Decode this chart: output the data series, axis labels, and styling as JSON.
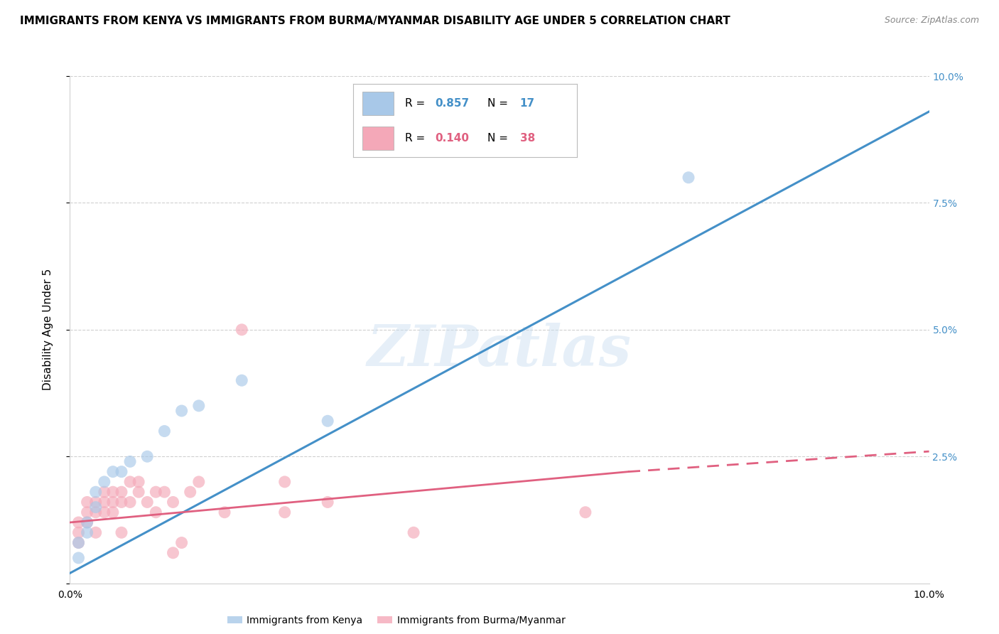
{
  "title": "IMMIGRANTS FROM KENYA VS IMMIGRANTS FROM BURMA/MYANMAR DISABILITY AGE UNDER 5 CORRELATION CHART",
  "source": "Source: ZipAtlas.com",
  "ylabel": "Disability Age Under 5",
  "xlim": [
    0.0,
    0.1
  ],
  "ylim": [
    0.0,
    0.1
  ],
  "watermark": "ZIPatlas",
  "kenya_R": 0.857,
  "kenya_N": 17,
  "burma_R": 0.14,
  "burma_N": 38,
  "kenya_color": "#a8c8e8",
  "kenya_line_color": "#4490c8",
  "burma_color": "#f4a8b8",
  "burma_line_color": "#e06080",
  "kenya_scatter": [
    [
      0.001,
      0.005
    ],
    [
      0.001,
      0.008
    ],
    [
      0.002,
      0.01
    ],
    [
      0.002,
      0.012
    ],
    [
      0.003,
      0.015
    ],
    [
      0.003,
      0.018
    ],
    [
      0.004,
      0.02
    ],
    [
      0.005,
      0.022
    ],
    [
      0.006,
      0.022
    ],
    [
      0.007,
      0.024
    ],
    [
      0.009,
      0.025
    ],
    [
      0.011,
      0.03
    ],
    [
      0.013,
      0.034
    ],
    [
      0.015,
      0.035
    ],
    [
      0.02,
      0.04
    ],
    [
      0.03,
      0.032
    ],
    [
      0.072,
      0.08
    ]
  ],
  "burma_scatter": [
    [
      0.001,
      0.008
    ],
    [
      0.001,
      0.01
    ],
    [
      0.001,
      0.012
    ],
    [
      0.002,
      0.012
    ],
    [
      0.002,
      0.014
    ],
    [
      0.002,
      0.016
    ],
    [
      0.003,
      0.01
    ],
    [
      0.003,
      0.014
    ],
    [
      0.003,
      0.016
    ],
    [
      0.004,
      0.014
    ],
    [
      0.004,
      0.016
    ],
    [
      0.004,
      0.018
    ],
    [
      0.005,
      0.014
    ],
    [
      0.005,
      0.016
    ],
    [
      0.005,
      0.018
    ],
    [
      0.006,
      0.01
    ],
    [
      0.006,
      0.016
    ],
    [
      0.006,
      0.018
    ],
    [
      0.007,
      0.016
    ],
    [
      0.007,
      0.02
    ],
    [
      0.008,
      0.018
    ],
    [
      0.008,
      0.02
    ],
    [
      0.009,
      0.016
    ],
    [
      0.01,
      0.014
    ],
    [
      0.01,
      0.018
    ],
    [
      0.011,
      0.018
    ],
    [
      0.012,
      0.016
    ],
    [
      0.012,
      0.006
    ],
    [
      0.013,
      0.008
    ],
    [
      0.014,
      0.018
    ],
    [
      0.015,
      0.02
    ],
    [
      0.018,
      0.014
    ],
    [
      0.02,
      0.05
    ],
    [
      0.025,
      0.014
    ],
    [
      0.025,
      0.02
    ],
    [
      0.03,
      0.016
    ],
    [
      0.04,
      0.01
    ],
    [
      0.06,
      0.014
    ]
  ],
  "kenya_line": [
    [
      0.0,
      0.002
    ],
    [
      0.1,
      0.093
    ]
  ],
  "burma_line_solid": [
    [
      0.0,
      0.012
    ],
    [
      0.065,
      0.022
    ]
  ],
  "burma_line_dash": [
    [
      0.065,
      0.022
    ],
    [
      0.1,
      0.026
    ]
  ],
  "background_color": "#ffffff",
  "grid_color": "#d0d0d0",
  "ytick_vals": [
    0.0,
    0.025,
    0.05,
    0.075,
    0.1
  ],
  "ytick_labels": [
    "",
    "2.5%",
    "5.0%",
    "7.5%",
    "10.0%"
  ],
  "xtick_vals": [
    0.0,
    0.02,
    0.04,
    0.06,
    0.08,
    0.1
  ],
  "xtick_labels": [
    "0.0%",
    "",
    "",
    "",
    "",
    "10.0%"
  ],
  "title_fontsize": 11,
  "source_fontsize": 9,
  "axis_label_fontsize": 11,
  "tick_fontsize": 10,
  "right_tick_color": "#4490c8"
}
